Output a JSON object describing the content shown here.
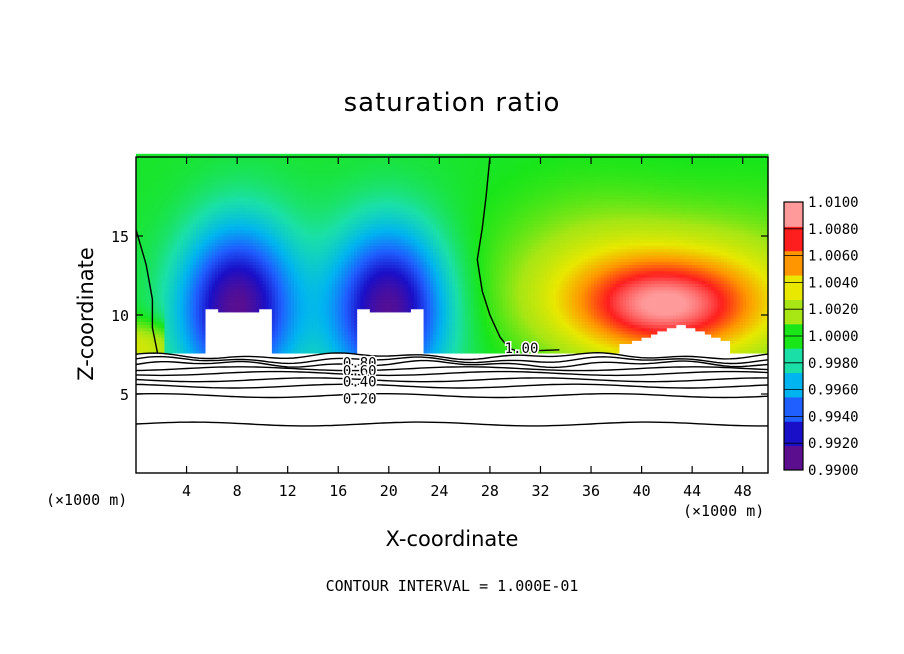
{
  "chart_data": {
    "type": "heatmap",
    "title": "saturation ratio",
    "xlabel": "X-coordinate",
    "ylabel": "Z-coordinate",
    "x_unit": "(×1000 m)",
    "x_unit_right": "(×1000 m)",
    "xlim": [
      0,
      50
    ],
    "ylim": [
      0,
      20
    ],
    "xticks": [
      4,
      8,
      12,
      16,
      20,
      24,
      28,
      32,
      36,
      40,
      44,
      48
    ],
    "yticks": [
      5,
      10,
      15
    ],
    "colorbar": {
      "levels": [
        0.99,
        0.992,
        0.994,
        0.996,
        0.998,
        1.0,
        1.002,
        1.004,
        1.006,
        1.008,
        1.01
      ],
      "labels": [
        "0.9900",
        "0.9920",
        "0.9940",
        "0.9960",
        "0.9980",
        "1.0000",
        "1.0020",
        "1.0040",
        "1.0060",
        "1.0080",
        "1.0100"
      ],
      "colors": [
        "#5b0f8f",
        "#1a0fc8",
        "#1f5fff",
        "#00b4f0",
        "#1ae0a8",
        "#19e619",
        "#a8e614",
        "#e8e800",
        "#ff9600",
        "#ff1e1e",
        "#ff9a9a"
      ]
    },
    "contour_labels": [
      {
        "text": "1.00",
        "x": 30.5,
        "y": 7.9
      },
      {
        "text": "0.80",
        "x": 17.7,
        "y": 7.0
      },
      {
        "text": "0.60",
        "x": 17.7,
        "y": 6.5
      },
      {
        "text": "0.40",
        "x": 17.7,
        "y": 5.8
      },
      {
        "text": "0.20",
        "x": 17.7,
        "y": 4.7
      }
    ],
    "contour_interval_text": "CONTOUR INTERVAL = 1.000E-01",
    "fields": {
      "cloud_base_km": 7.6,
      "dry_cores": [
        {
          "x": 8,
          "z": 10.5,
          "min": 0.99
        },
        {
          "x": 20,
          "z": 10.5,
          "min": 0.99
        }
      ],
      "moist_core": {
        "x": 42,
        "z": 10.5,
        "max": 1.01
      },
      "subcloud_contour_heights_km": [
        3.1,
        4.9,
        5.5,
        5.9,
        6.3,
        6.6,
        6.9,
        7.15,
        7.4
      ]
    }
  }
}
